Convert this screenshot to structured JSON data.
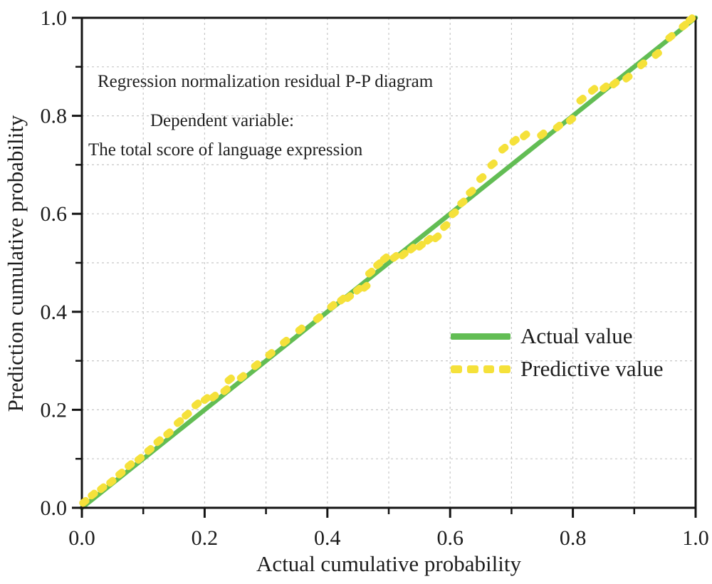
{
  "chart_data": {
    "type": "scatter",
    "title": "Regression normalization residual P-P diagram",
    "annotations": [
      "Dependent variable:",
      "The total score of language expression"
    ],
    "xlabel": "Actual cumulative probability",
    "ylabel": "Prediction cumulative probability",
    "xlim": [
      0.0,
      1.0
    ],
    "ylim": [
      0.0,
      1.0
    ],
    "x_ticks": {
      "values": [
        0,
        0.2,
        0.4,
        0.6,
        0.8,
        1.0
      ],
      "labels": [
        "0.0",
        "0.2",
        "0.4",
        "0.6",
        "0.8",
        "1.0"
      ]
    },
    "y_ticks": {
      "values": [
        0,
        0.2,
        0.4,
        0.6,
        0.8,
        1.0
      ],
      "labels": [
        "0.0",
        "0.2",
        "0.4",
        "0.6",
        "0.8",
        "1.0"
      ]
    },
    "minor_ticks": [
      0.1,
      0.3,
      0.5,
      0.7,
      0.9
    ],
    "grid": {
      "show": true,
      "step": 0.1,
      "color": "#c7c7c7",
      "dash": "3 4"
    },
    "axis_color": "#141414",
    "text_color": "#1c1c1c",
    "background": "#ffffff",
    "legend": {
      "position": "right-middle",
      "border": false,
      "entries": [
        {
          "label": "Actual value",
          "marker": "solid-line",
          "color": "#62bd54"
        },
        {
          "label": "Predictive value",
          "marker": "dashed-line",
          "color": "#f5e13a"
        }
      ]
    },
    "series": [
      {
        "name": "Actual value",
        "type": "line",
        "color": "#62bd54",
        "points": [
          [
            0,
            0
          ],
          [
            1,
            1
          ]
        ]
      },
      {
        "name": "Predictive value",
        "type": "scatter",
        "color": "#f5e13a",
        "points": [
          [
            0.004,
            0.012
          ],
          [
            0.018,
            0.027
          ],
          [
            0.033,
            0.04
          ],
          [
            0.048,
            0.053
          ],
          [
            0.063,
            0.07
          ],
          [
            0.078,
            0.087
          ],
          [
            0.094,
            0.1
          ],
          [
            0.11,
            0.118
          ],
          [
            0.125,
            0.136
          ],
          [
            0.141,
            0.152
          ],
          [
            0.158,
            0.175
          ],
          [
            0.171,
            0.19
          ],
          [
            0.187,
            0.211
          ],
          [
            0.202,
            0.222
          ],
          [
            0.215,
            0.227
          ],
          [
            0.234,
            0.24
          ],
          [
            0.241,
            0.262
          ],
          [
            0.261,
            0.267
          ],
          [
            0.284,
            0.291
          ],
          [
            0.307,
            0.314
          ],
          [
            0.331,
            0.339
          ],
          [
            0.356,
            0.364
          ],
          [
            0.385,
            0.387
          ],
          [
            0.408,
            0.412
          ],
          [
            0.424,
            0.425
          ],
          [
            0.435,
            0.43
          ],
          [
            0.45,
            0.445
          ],
          [
            0.462,
            0.451
          ],
          [
            0.47,
            0.48
          ],
          [
            0.483,
            0.497
          ],
          [
            0.494,
            0.509
          ],
          [
            0.51,
            0.512
          ],
          [
            0.524,
            0.517
          ],
          [
            0.538,
            0.529
          ],
          [
            0.552,
            0.535
          ],
          [
            0.565,
            0.547
          ],
          [
            0.578,
            0.552
          ],
          [
            0.592,
            0.575
          ],
          [
            0.606,
            0.601
          ],
          [
            0.62,
            0.623
          ],
          [
            0.634,
            0.645
          ],
          [
            0.651,
            0.673
          ],
          [
            0.669,
            0.701
          ],
          [
            0.687,
            0.733
          ],
          [
            0.705,
            0.749
          ],
          [
            0.722,
            0.76
          ],
          [
            0.75,
            0.762
          ],
          [
            0.776,
            0.778
          ],
          [
            0.797,
            0.792
          ],
          [
            0.814,
            0.833
          ],
          [
            0.833,
            0.853
          ],
          [
            0.852,
            0.858
          ],
          [
            0.868,
            0.866
          ],
          [
            0.889,
            0.878
          ],
          [
            0.913,
            0.905
          ],
          [
            0.937,
            0.926
          ],
          [
            0.959,
            0.961
          ],
          [
            0.981,
            0.984
          ],
          [
            0.992,
            0.997
          ]
        ]
      }
    ]
  }
}
